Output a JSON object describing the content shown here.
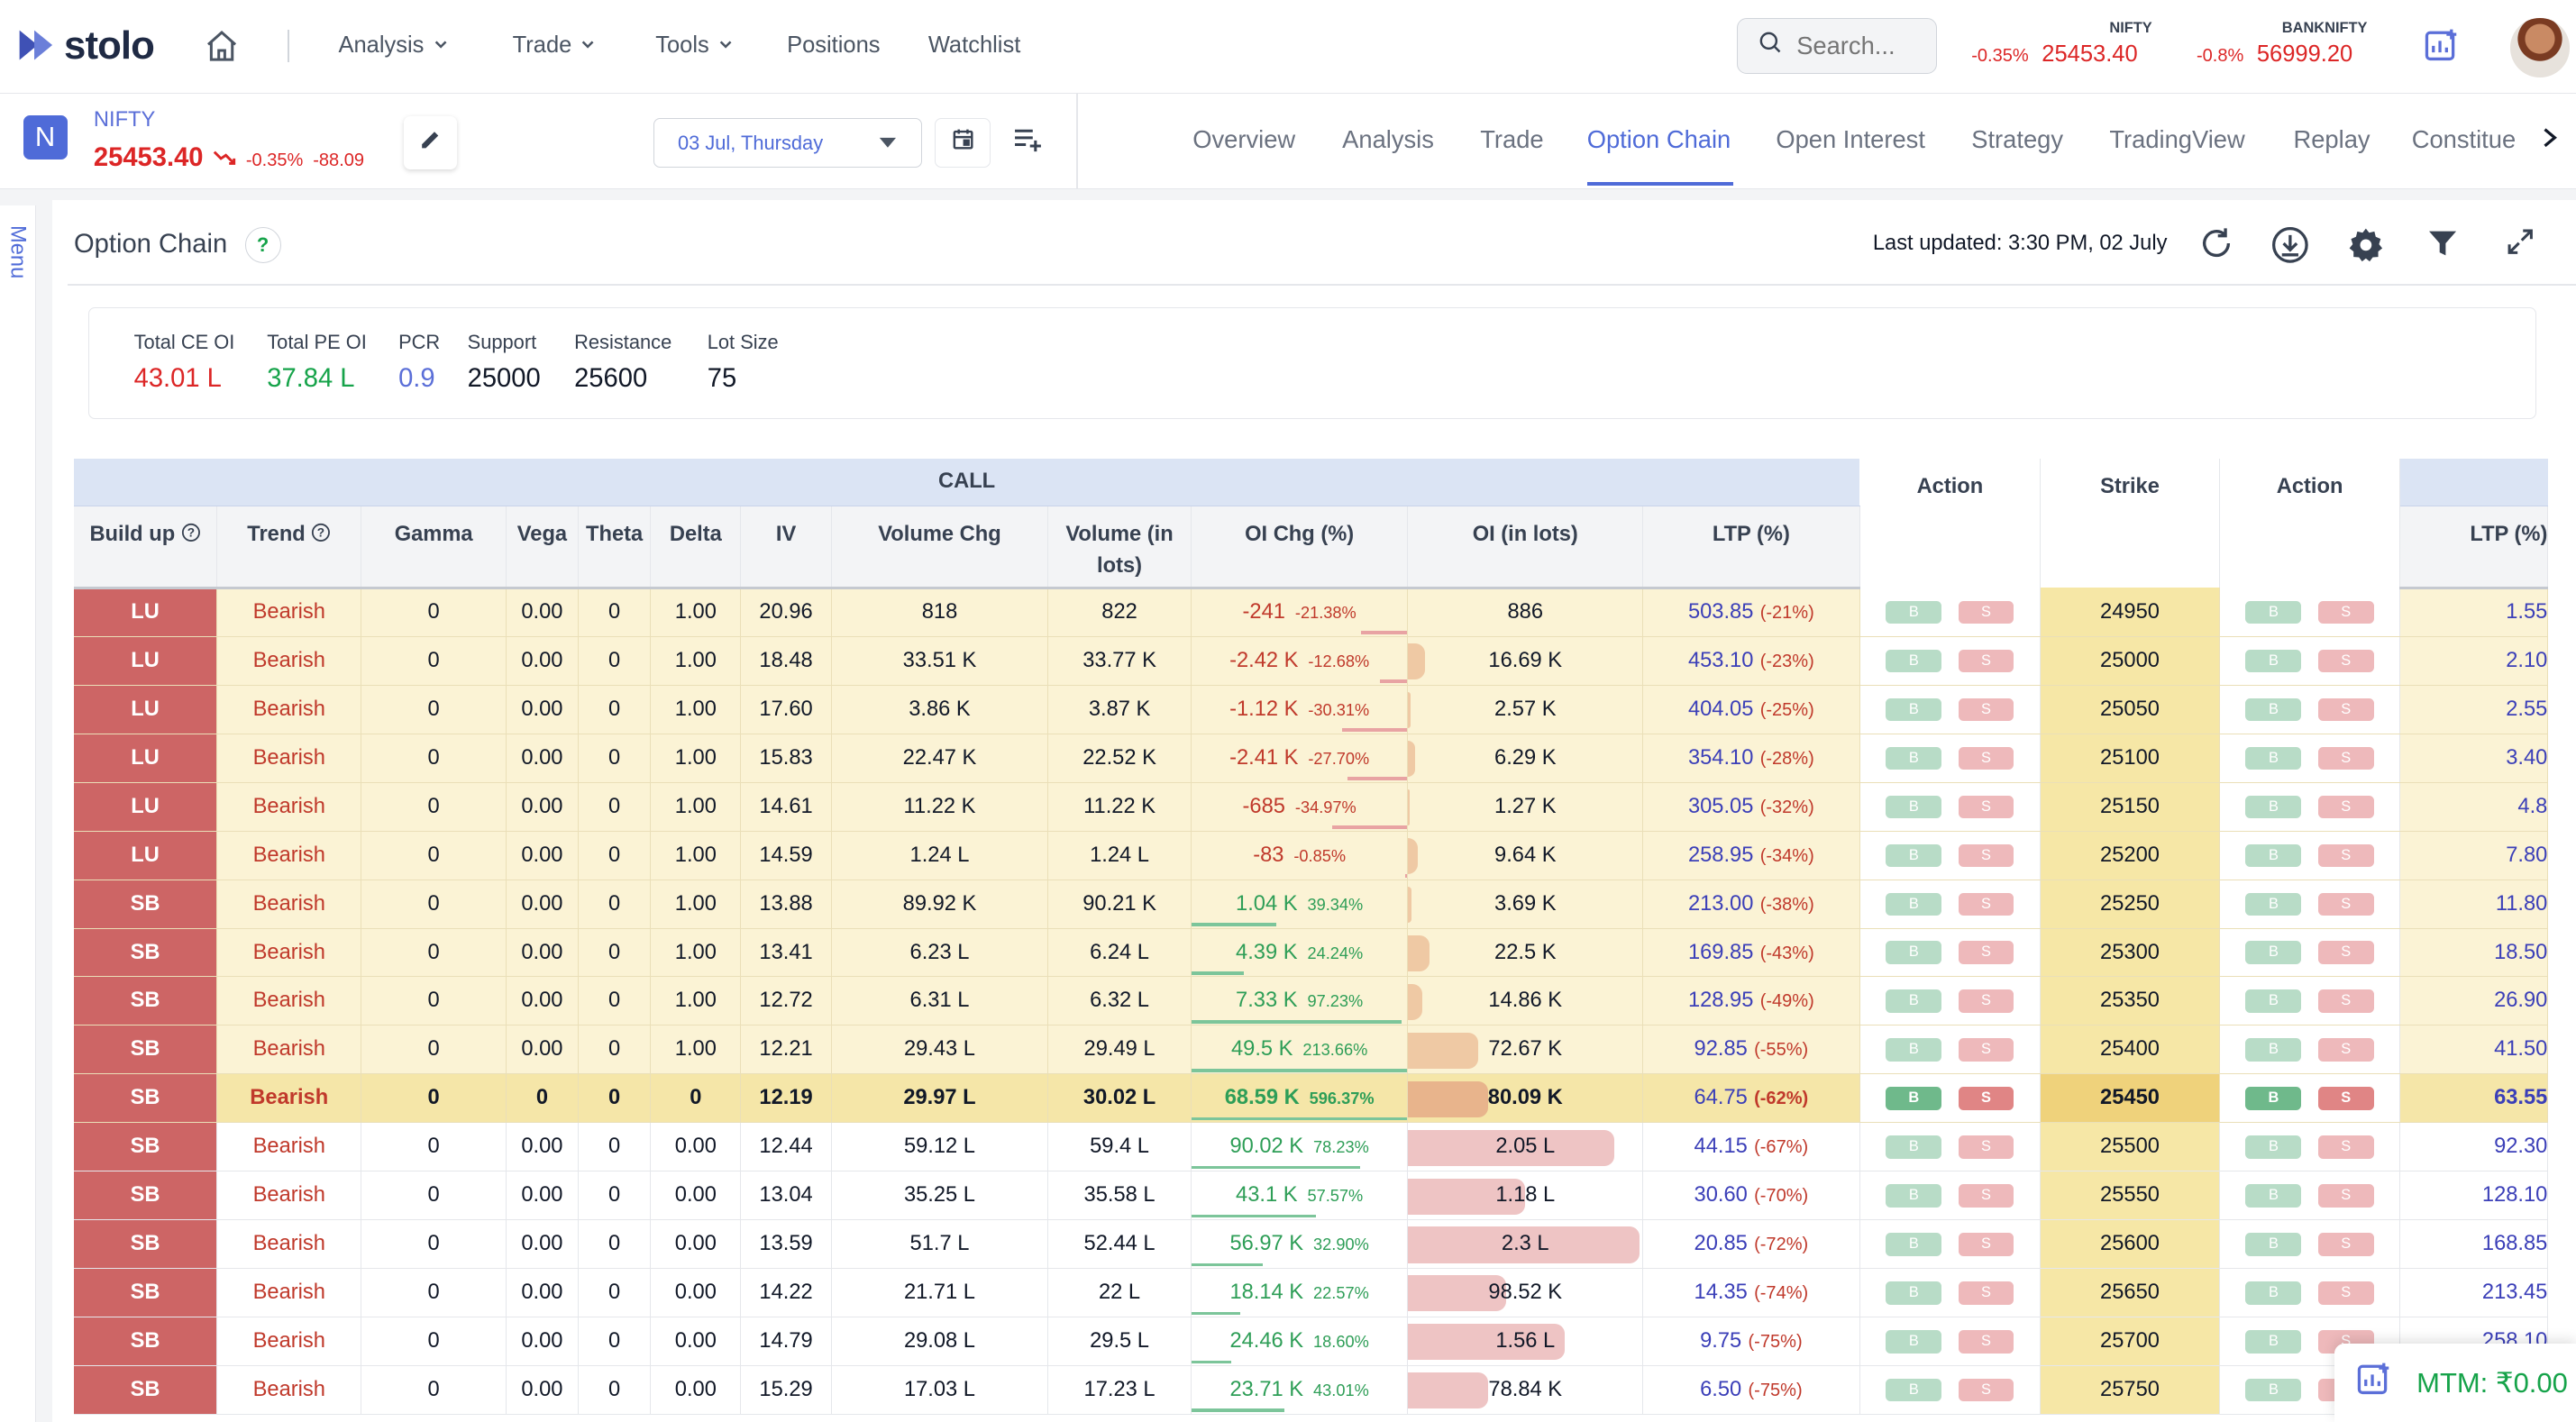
{
  "brand": {
    "name": "stolo"
  },
  "nav": {
    "items": [
      "Analysis",
      "Trade",
      "Tools",
      "Positions",
      "Watchlist"
    ]
  },
  "search": {
    "placeholder": "Search..."
  },
  "tickers": [
    {
      "name": "NIFTY",
      "change": "-0.35%",
      "price": "25453.40"
    },
    {
      "name": "BANKNIFTY",
      "change": "-0.8%",
      "price": "56999.20"
    }
  ],
  "symbol": {
    "badge": "N",
    "name": "NIFTY",
    "price": "25453.40",
    "change_pct": "-0.35%",
    "change_abs": "-88.09"
  },
  "expiry": {
    "selected": "03 Jul, Thursday"
  },
  "tabs": [
    "Overview",
    "Analysis",
    "Trade",
    "Option Chain",
    "Open Interest",
    "Strategy",
    "TradingView",
    "Replay",
    "Constitue"
  ],
  "side_menu": {
    "label": "Menu"
  },
  "panel": {
    "title": "Option Chain",
    "help": "?",
    "last_updated": "Last updated: 3:30 PM, 02 July"
  },
  "stats": [
    {
      "label": "Total CE OI",
      "value": "43.01 L",
      "color": "#dc2626"
    },
    {
      "label": "Total PE OI",
      "value": "37.84 L",
      "color": "#16a34a"
    },
    {
      "label": "PCR",
      "value": "0.9",
      "color": "#5b6fd8"
    },
    {
      "label": "Support",
      "value": "25000",
      "color": "#111827"
    },
    {
      "label": "Resistance",
      "value": "25600",
      "color": "#111827"
    },
    {
      "label": "Lot Size",
      "value": "75",
      "color": "#111827"
    }
  ],
  "table": {
    "group_call": "CALL",
    "headers": {
      "buildup": "Build up",
      "trend": "Trend",
      "gamma": "Gamma",
      "vega": "Vega",
      "theta": "Theta",
      "delta": "Delta",
      "iv": "IV",
      "vol_chg": "Volume Chg",
      "vol_lots": "Volume (in lots)",
      "oi_chg": "OI Chg (%)",
      "oi_lots": "OI (in lots)",
      "ltp": "LTP (%)",
      "action": "Action",
      "strike": "Strike",
      "ltp_put": "LTP (%)"
    },
    "buy_label": "B",
    "sell_label": "S",
    "rows": [
      {
        "buildup": "LU",
        "trend": "Bearish",
        "gamma": "0",
        "vega": "0.00",
        "theta": "0",
        "delta": "1.00",
        "iv": "20.96",
        "vol_chg": "818",
        "vol_lots": "822",
        "oi_chg": "-241",
        "oi_chg_pct": "-21.38%",
        "oi_lots": "886",
        "oi_fill": 0.0,
        "ltp": "503.85",
        "ltp_pct": "(-21%)",
        "strike": "24950",
        "put_ltp": "1.55",
        "zone": "itm"
      },
      {
        "buildup": "LU",
        "trend": "Bearish",
        "gamma": "0",
        "vega": "0.00",
        "theta": "0",
        "delta": "1.00",
        "iv": "18.48",
        "vol_chg": "33.51 K",
        "vol_lots": "33.77 K",
        "oi_chg": "-2.42 K",
        "oi_chg_pct": "-12.68%",
        "oi_lots": "16.69 K",
        "oi_fill": 0.07,
        "ltp": "453.10",
        "ltp_pct": "(-23%)",
        "strike": "25000",
        "put_ltp": "2.10",
        "zone": "itm"
      },
      {
        "buildup": "LU",
        "trend": "Bearish",
        "gamma": "0",
        "vega": "0.00",
        "theta": "0",
        "delta": "1.00",
        "iv": "17.60",
        "vol_chg": "3.86 K",
        "vol_lots": "3.87 K",
        "oi_chg": "-1.12 K",
        "oi_chg_pct": "-30.31%",
        "oi_lots": "2.57 K",
        "oi_fill": 0.01,
        "ltp": "404.05",
        "ltp_pct": "(-25%)",
        "strike": "25050",
        "put_ltp": "2.55",
        "zone": "itm"
      },
      {
        "buildup": "LU",
        "trend": "Bearish",
        "gamma": "0",
        "vega": "0.00",
        "theta": "0",
        "delta": "1.00",
        "iv": "15.83",
        "vol_chg": "22.47 K",
        "vol_lots": "22.52 K",
        "oi_chg": "-2.41 K",
        "oi_chg_pct": "-27.70%",
        "oi_lots": "6.29 K",
        "oi_fill": 0.03,
        "ltp": "354.10",
        "ltp_pct": "(-28%)",
        "strike": "25100",
        "put_ltp": "3.40",
        "zone": "itm"
      },
      {
        "buildup": "LU",
        "trend": "Bearish",
        "gamma": "0",
        "vega": "0.00",
        "theta": "0",
        "delta": "1.00",
        "iv": "14.61",
        "vol_chg": "11.22 K",
        "vol_lots": "11.22 K",
        "oi_chg": "-685",
        "oi_chg_pct": "-34.97%",
        "oi_lots": "1.27 K",
        "oi_fill": 0.005,
        "ltp": "305.05",
        "ltp_pct": "(-32%)",
        "strike": "25150",
        "put_ltp": "4.8",
        "zone": "itm"
      },
      {
        "buildup": "LU",
        "trend": "Bearish",
        "gamma": "0",
        "vega": "0.00",
        "theta": "0",
        "delta": "1.00",
        "iv": "14.59",
        "vol_chg": "1.24 L",
        "vol_lots": "1.24 L",
        "oi_chg": "-83",
        "oi_chg_pct": "-0.85%",
        "oi_lots": "9.64 K",
        "oi_fill": 0.04,
        "ltp": "258.95",
        "ltp_pct": "(-34%)",
        "strike": "25200",
        "put_ltp": "7.80",
        "zone": "itm"
      },
      {
        "buildup": "SB",
        "trend": "Bearish",
        "gamma": "0",
        "vega": "0.00",
        "theta": "0",
        "delta": "1.00",
        "iv": "13.88",
        "vol_chg": "89.92 K",
        "vol_lots": "90.21 K",
        "oi_chg": "1.04 K",
        "oi_chg_pct": "39.34%",
        "oi_lots": "3.69 K",
        "oi_fill": 0.015,
        "ltp": "213.00",
        "ltp_pct": "(-38%)",
        "strike": "25250",
        "put_ltp": "11.80",
        "zone": "itm"
      },
      {
        "buildup": "SB",
        "trend": "Bearish",
        "gamma": "0",
        "vega": "0.00",
        "theta": "0",
        "delta": "1.00",
        "iv": "13.41",
        "vol_chg": "6.23 L",
        "vol_lots": "6.24 L",
        "oi_chg": "4.39 K",
        "oi_chg_pct": "24.24%",
        "oi_lots": "22.5 K",
        "oi_fill": 0.09,
        "ltp": "169.85",
        "ltp_pct": "(-43%)",
        "strike": "25300",
        "put_ltp": "18.50",
        "zone": "itm"
      },
      {
        "buildup": "SB",
        "trend": "Bearish",
        "gamma": "0",
        "vega": "0.00",
        "theta": "0",
        "delta": "1.00",
        "iv": "12.72",
        "vol_chg": "6.31 L",
        "vol_lots": "6.32 L",
        "oi_chg": "7.33 K",
        "oi_chg_pct": "97.23%",
        "oi_lots": "14.86 K",
        "oi_fill": 0.06,
        "ltp": "128.95",
        "ltp_pct": "(-49%)",
        "strike": "25350",
        "put_ltp": "26.90",
        "zone": "itm"
      },
      {
        "buildup": "SB",
        "trend": "Bearish",
        "gamma": "0",
        "vega": "0.00",
        "theta": "0",
        "delta": "1.00",
        "iv": "12.21",
        "vol_chg": "29.43 L",
        "vol_lots": "29.49 L",
        "oi_chg": "49.5 K",
        "oi_chg_pct": "213.66%",
        "oi_lots": "72.67 K",
        "oi_fill": 0.3,
        "ltp": "92.85",
        "ltp_pct": "(-55%)",
        "strike": "25400",
        "put_ltp": "41.50",
        "zone": "itm"
      },
      {
        "buildup": "SB",
        "trend": "Bearish",
        "gamma": "0",
        "vega": "0",
        "theta": "0",
        "delta": "0",
        "iv": "12.19",
        "vol_chg": "29.97 L",
        "vol_lots": "30.02 L",
        "oi_chg": "68.59 K",
        "oi_chg_pct": "596.37%",
        "oi_lots": "80.09 K",
        "oi_fill": 0.34,
        "ltp": "64.75",
        "ltp_pct": "(-62%)",
        "strike": "25450",
        "put_ltp": "63.55",
        "zone": "atm"
      },
      {
        "buildup": "SB",
        "trend": "Bearish",
        "gamma": "0",
        "vega": "0.00",
        "theta": "0",
        "delta": "0.00",
        "iv": "12.44",
        "vol_chg": "59.12 L",
        "vol_lots": "59.4 L",
        "oi_chg": "90.02 K",
        "oi_chg_pct": "78.23%",
        "oi_lots": "2.05 L",
        "oi_fill": 0.88,
        "ltp": "44.15",
        "ltp_pct": "(-67%)",
        "strike": "25500",
        "put_ltp": "92.30",
        "zone": "otm"
      },
      {
        "buildup": "SB",
        "trend": "Bearish",
        "gamma": "0",
        "vega": "0.00",
        "theta": "0",
        "delta": "0.00",
        "iv": "13.04",
        "vol_chg": "35.25 L",
        "vol_lots": "35.58 L",
        "oi_chg": "43.1 K",
        "oi_chg_pct": "57.57%",
        "oi_lots": "1.18 L",
        "oi_fill": 0.5,
        "ltp": "30.60",
        "ltp_pct": "(-70%)",
        "strike": "25550",
        "put_ltp": "128.10",
        "zone": "otm"
      },
      {
        "buildup": "SB",
        "trend": "Bearish",
        "gamma": "0",
        "vega": "0.00",
        "theta": "0",
        "delta": "0.00",
        "iv": "13.59",
        "vol_chg": "51.7 L",
        "vol_lots": "52.44 L",
        "oi_chg": "56.97 K",
        "oi_chg_pct": "32.90%",
        "oi_lots": "2.3 L",
        "oi_fill": 0.99,
        "ltp": "20.85",
        "ltp_pct": "(-72%)",
        "strike": "25600",
        "put_ltp": "168.85",
        "zone": "otm"
      },
      {
        "buildup": "SB",
        "trend": "Bearish",
        "gamma": "0",
        "vega": "0.00",
        "theta": "0",
        "delta": "0.00",
        "iv": "14.22",
        "vol_chg": "21.71 L",
        "vol_lots": "22 L",
        "oi_chg": "18.14 K",
        "oi_chg_pct": "22.57%",
        "oi_lots": "98.52 K",
        "oi_fill": 0.42,
        "ltp": "14.35",
        "ltp_pct": "(-74%)",
        "strike": "25650",
        "put_ltp": "213.45",
        "zone": "otm"
      },
      {
        "buildup": "SB",
        "trend": "Bearish",
        "gamma": "0",
        "vega": "0.00",
        "theta": "0",
        "delta": "0.00",
        "iv": "14.79",
        "vol_chg": "29.08 L",
        "vol_lots": "29.5 L",
        "oi_chg": "24.46 K",
        "oi_chg_pct": "18.60%",
        "oi_lots": "1.56 L",
        "oi_fill": 0.67,
        "ltp": "9.75",
        "ltp_pct": "(-75%)",
        "strike": "25700",
        "put_ltp": "258.10",
        "zone": "otm"
      },
      {
        "buildup": "SB",
        "trend": "Bearish",
        "gamma": "0",
        "vega": "0.00",
        "theta": "0",
        "delta": "0.00",
        "iv": "15.29",
        "vol_chg": "17.03 L",
        "vol_lots": "17.23 L",
        "oi_chg": "23.71 K",
        "oi_chg_pct": "43.01%",
        "oi_lots": "78.84 K",
        "oi_fill": 0.34,
        "ltp": "6.50",
        "ltp_pct": "(-75%)",
        "strike": "25750",
        "put_ltp": "",
        "zone": "otm"
      }
    ]
  },
  "mtm": {
    "label": "MTM: ₹0.00"
  }
}
